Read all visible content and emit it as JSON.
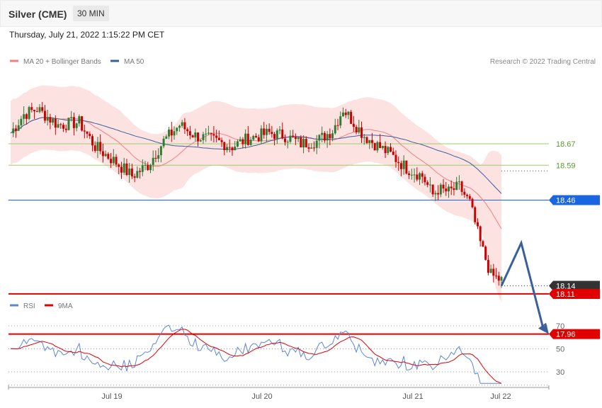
{
  "header": {
    "title": "Silver (CME)",
    "interval": "30 MIN"
  },
  "timestamp": "Thursday, July 21, 2022 1:15:22 PM CET",
  "legend_main": [
    {
      "label": "MA 20 + Bollinger Bands",
      "color": "#f08080"
    },
    {
      "label": "MA 50",
      "color": "#3a5f9e"
    }
  ],
  "credit": "Research © 2022 Trading Central",
  "legend_rsi": [
    {
      "label": "RSI",
      "color": "#5b86d6"
    },
    {
      "label": "9MA",
      "color": "#e00000"
    }
  ],
  "colors": {
    "up": "#2e7d32",
    "down": "#cc0000",
    "band": "#fde2e2",
    "ma20": "#f08080",
    "ma50": "#3a5f9e",
    "support": "#e00000",
    "pivot": "#1a66e0",
    "resistance": "#9acd6a",
    "last": "#333333",
    "arrow": "#3a5f9e"
  },
  "chart_data": [
    {
      "type": "candlestick",
      "title": "Silver (CME)",
      "interval": "30 MIN",
      "x_labels": [
        "Jul 19",
        "Jul 20",
        "Jul 21",
        "Jul 22"
      ],
      "ylim": [
        17.9,
        18.9
      ],
      "price_levels": [
        {
          "label": "18.67",
          "value": 18.67,
          "kind": "resistance"
        },
        {
          "label": "18.59",
          "value": 18.59,
          "kind": "resistance"
        },
        {
          "label": "18.46",
          "value": 18.46,
          "kind": "pivot"
        },
        {
          "label": "18.14",
          "value": 18.14,
          "kind": "last"
        },
        {
          "label": "18.11",
          "value": 18.11,
          "kind": "support"
        },
        {
          "label": "17.96",
          "value": 17.96,
          "kind": "support"
        }
      ],
      "forecast_path": [
        18.14,
        18.3,
        17.96
      ]
    },
    {
      "type": "line",
      "series": [
        {
          "name": "RSI"
        },
        {
          "name": "9MA"
        }
      ],
      "y_ticks": [
        "70",
        "50",
        "30"
      ],
      "ylim": [
        18,
        80
      ]
    }
  ]
}
